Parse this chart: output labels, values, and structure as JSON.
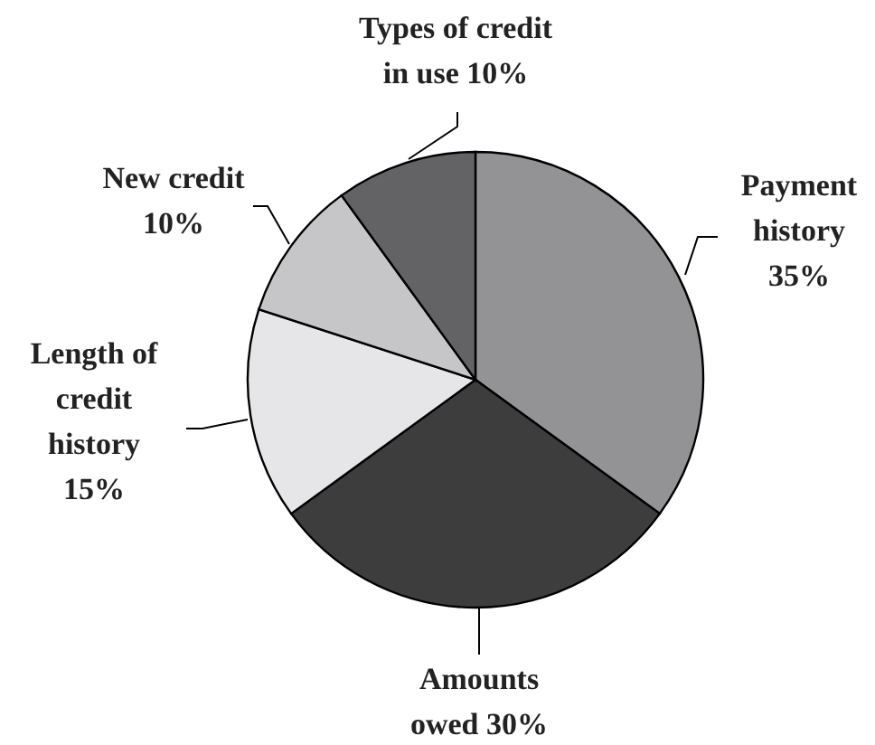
{
  "chart_data": {
    "type": "pie",
    "categories": [
      "Payment history",
      "Amounts owed",
      "Length of credit history",
      "New credit",
      "Types of credit in use"
    ],
    "values": [
      35,
      30,
      15,
      10,
      10
    ],
    "colors": [
      "#939396",
      "#3d3d3d",
      "#e6e6e8",
      "#c6c6c8",
      "#636365"
    ],
    "value_labels": [
      "35%",
      "30%",
      "15%",
      "10%",
      "10%"
    ]
  }
}
